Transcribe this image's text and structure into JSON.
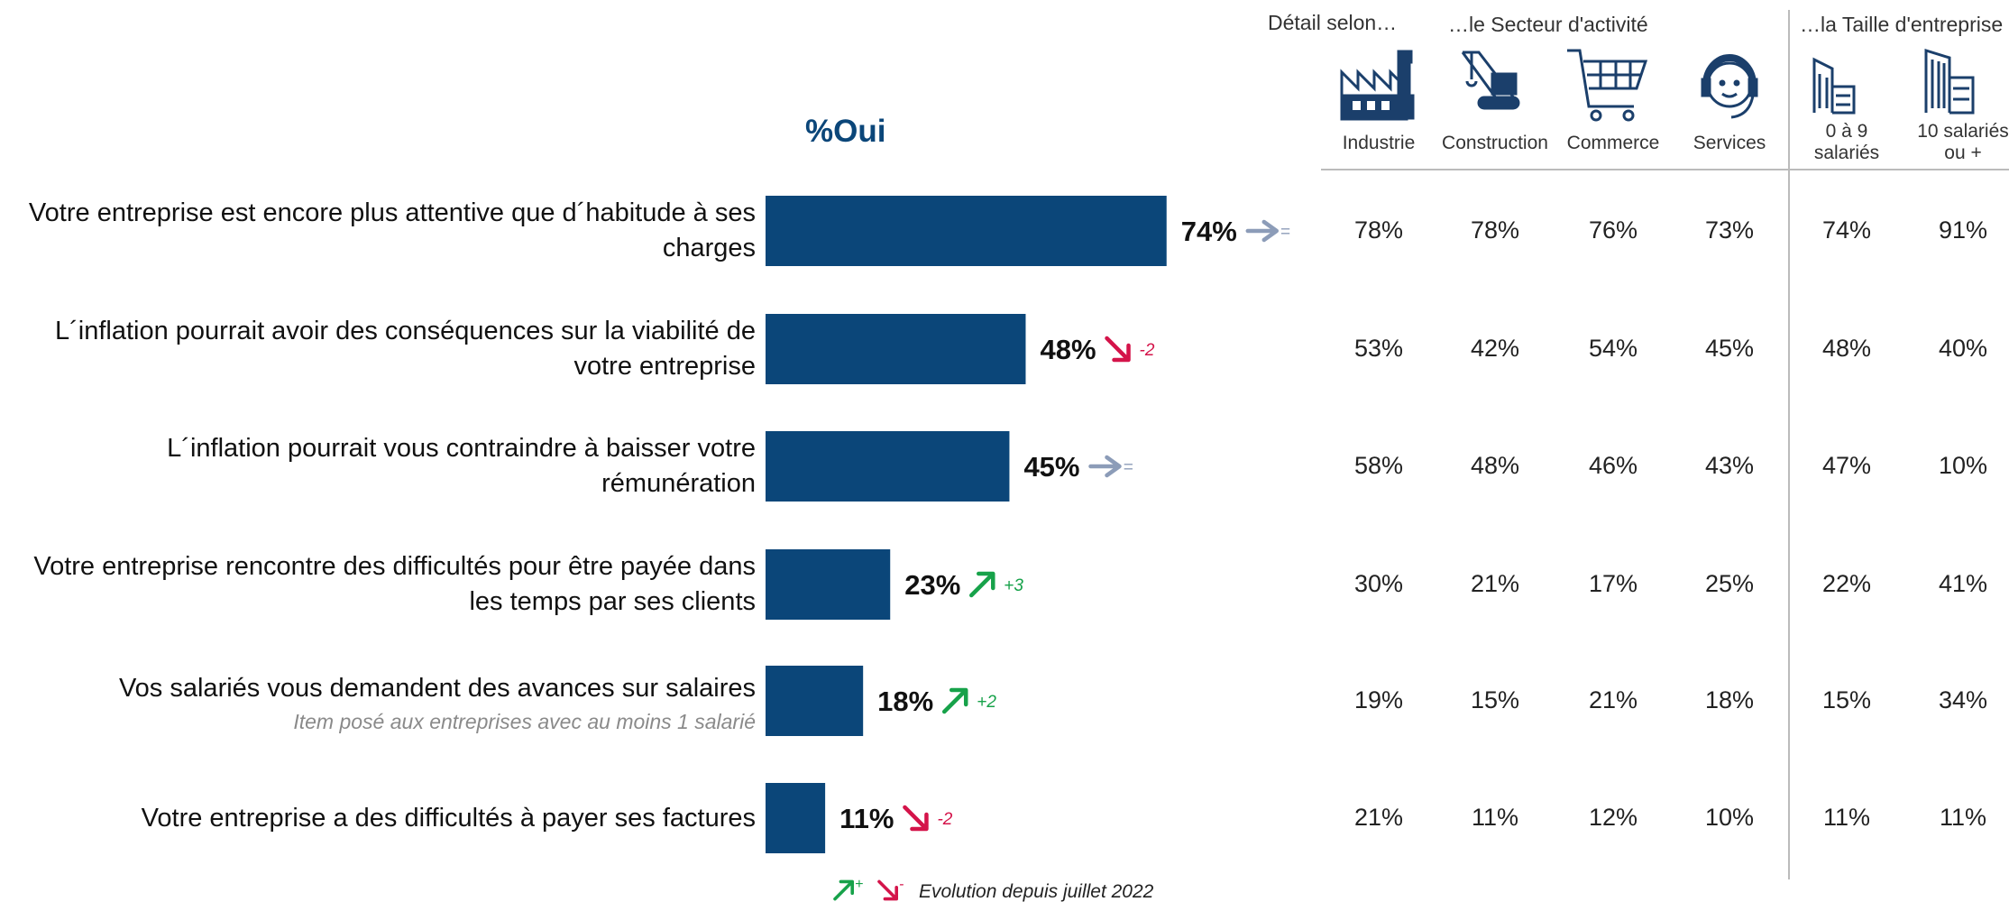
{
  "chart_data": {
    "type": "bar",
    "orientation": "horizontal",
    "title": "%Oui",
    "color": "#0b4679",
    "xlim": [
      0,
      100
    ],
    "categories": [
      "Votre entreprise est encore plus attentive que d´habitude à ses charges",
      "L´inflation pourrait avoir des conséquences sur la viabilité de votre entreprise",
      "L´inflation pourrait vous contraindre à baisser votre rémunération",
      "Votre entreprise rencontre des difficultés pour être payée dans les temps par ses clients",
      "Vos salariés vous demandent des avances sur salaires",
      "Votre entreprise a des difficultés à payer ses factures"
    ],
    "notes": [
      null,
      null,
      null,
      null,
      "Item posé aux entreprises avec au moins 1 salarié",
      null
    ],
    "values": [
      74,
      48,
      45,
      23,
      18,
      11
    ],
    "value_labels": [
      "74%",
      "48%",
      "45%",
      "23%",
      "18%",
      "11%"
    ],
    "evolution": {
      "labels": [
        "=",
        "-2",
        "=",
        "+3",
        "+2",
        "-2"
      ],
      "trends": [
        "flat",
        "down",
        "flat",
        "up",
        "up",
        "down"
      ],
      "colors": {
        "flat": "#8c9cb8",
        "down": "#d4144a",
        "up": "#17a24a"
      }
    },
    "legend": {
      "up": "+",
      "down": "-",
      "text": "Evolution depuis juillet 2022"
    }
  },
  "table": {
    "intro": "Détail selon…",
    "groups": [
      "…le Secteur d'activité",
      "…la Taille d'entreprise"
    ],
    "columns": [
      "Industrie",
      "Construction",
      "Commerce",
      "Services",
      "0 à 9 salariés",
      "10 salariés ou +"
    ],
    "rows": [
      [
        "78%",
        "78%",
        "76%",
        "73%",
        "74%",
        "91%"
      ],
      [
        "53%",
        "42%",
        "54%",
        "45%",
        "48%",
        "40%"
      ],
      [
        "58%",
        "48%",
        "46%",
        "43%",
        "47%",
        "10%"
      ],
      [
        "30%",
        "21%",
        "17%",
        "25%",
        "22%",
        "41%"
      ],
      [
        "19%",
        "15%",
        "21%",
        "18%",
        "15%",
        "34%"
      ],
      [
        "21%",
        "11%",
        "12%",
        "10%",
        "11%",
        "11%"
      ]
    ]
  }
}
